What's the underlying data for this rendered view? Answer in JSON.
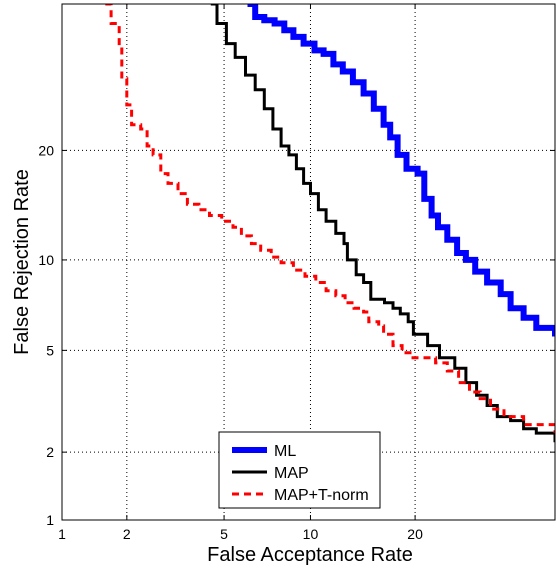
{
  "chart_data": {
    "type": "line",
    "title": "",
    "xlabel": "False Acceptance Rate",
    "ylabel": "False Rejection Rate",
    "x_scale": "probit",
    "y_scale": "probit",
    "xlim": [
      1,
      40
    ],
    "ylim": [
      1,
      40
    ],
    "xticks": [
      1,
      2,
      5,
      10,
      20
    ],
    "yticks": [
      1,
      2,
      5,
      10,
      20
    ],
    "grid": true,
    "legend_position": "bottom-center",
    "series": [
      {
        "name": "ML",
        "color": "#0000ff",
        "style": "solid-thick",
        "points": [
          [
            6.1,
            40
          ],
          [
            6.5,
            38
          ],
          [
            7.0,
            37.5
          ],
          [
            7.6,
            37
          ],
          [
            8.2,
            36
          ],
          [
            8.8,
            35
          ],
          [
            9.5,
            34
          ],
          [
            10.3,
            33
          ],
          [
            11.0,
            32.5
          ],
          [
            11.8,
            31
          ],
          [
            12.6,
            30
          ],
          [
            13.5,
            28.5
          ],
          [
            14.5,
            27
          ],
          [
            15.5,
            25
          ],
          [
            16.5,
            23
          ],
          [
            17.2,
            21.5
          ],
          [
            18.0,
            19.5
          ],
          [
            19.0,
            18
          ],
          [
            20.3,
            17.5
          ],
          [
            21.1,
            15
          ],
          [
            22.0,
            13.5
          ],
          [
            22.8,
            12.5
          ],
          [
            24.0,
            11.5
          ],
          [
            25.3,
            10.5
          ],
          [
            26.5,
            10
          ],
          [
            27.8,
            9.2
          ],
          [
            29.5,
            8.5
          ],
          [
            31.5,
            7.8
          ],
          [
            33.0,
            7.0
          ],
          [
            35.0,
            6.5
          ],
          [
            37.0,
            6.0
          ],
          [
            40.0,
            5.6
          ]
        ]
      },
      {
        "name": "MAP",
        "color": "#000000",
        "style": "solid",
        "points": [
          [
            4.45,
            40
          ],
          [
            4.7,
            37
          ],
          [
            5.1,
            34
          ],
          [
            5.5,
            32
          ],
          [
            6.0,
            29.5
          ],
          [
            6.5,
            27.5
          ],
          [
            7.0,
            25
          ],
          [
            7.5,
            22.5
          ],
          [
            8.0,
            20.5
          ],
          [
            8.5,
            19.5
          ],
          [
            9.0,
            18
          ],
          [
            9.5,
            16.5
          ],
          [
            10.0,
            15.5
          ],
          [
            10.6,
            14
          ],
          [
            11.2,
            13
          ],
          [
            12.0,
            12
          ],
          [
            12.7,
            11.2
          ],
          [
            13.0,
            10
          ],
          [
            13.8,
            9
          ],
          [
            14.5,
            8.5
          ],
          [
            15.2,
            7.5
          ],
          [
            16.6,
            7.3
          ],
          [
            17.5,
            7.0
          ],
          [
            18.3,
            6.7
          ],
          [
            19.2,
            6.3
          ],
          [
            19.8,
            5.7
          ],
          [
            20.8,
            5.7
          ],
          [
            21.5,
            5.2
          ],
          [
            23.0,
            4.7
          ],
          [
            25.0,
            4.3
          ],
          [
            26.5,
            3.8
          ],
          [
            28.0,
            3.4
          ],
          [
            29.5,
            3.1
          ],
          [
            31.0,
            2.8
          ],
          [
            33.0,
            2.7
          ],
          [
            35.0,
            2.5
          ],
          [
            37.0,
            2.4
          ],
          [
            40.0,
            2.2
          ]
        ]
      },
      {
        "name": "MAP+T-norm",
        "color": "#ff0000",
        "style": "dashed",
        "points": [
          [
            1.6,
            40
          ],
          [
            1.7,
            37
          ],
          [
            1.85,
            33.5
          ],
          [
            1.9,
            29
          ],
          [
            2.0,
            25.5
          ],
          [
            2.1,
            23
          ],
          [
            2.3,
            22.5
          ],
          [
            2.45,
            20.5
          ],
          [
            2.6,
            19.5
          ],
          [
            2.8,
            17.5
          ],
          [
            3.0,
            16.5
          ],
          [
            3.3,
            15.5
          ],
          [
            3.6,
            14.5
          ],
          [
            4.0,
            14
          ],
          [
            4.4,
            13.5
          ],
          [
            4.9,
            13
          ],
          [
            5.4,
            12.5
          ],
          [
            5.8,
            11.8
          ],
          [
            6.3,
            11.2
          ],
          [
            6.8,
            10.7
          ],
          [
            7.4,
            10.2
          ],
          [
            8.0,
            9.8
          ],
          [
            8.8,
            9.3
          ],
          [
            9.6,
            8.9
          ],
          [
            10.4,
            8.5
          ],
          [
            11.2,
            8.0
          ],
          [
            12.0,
            7.7
          ],
          [
            12.8,
            7.3
          ],
          [
            13.6,
            7.0
          ],
          [
            14.5,
            6.8
          ],
          [
            15.0,
            6.3
          ],
          [
            16.0,
            6.1
          ],
          [
            16.5,
            5.7
          ],
          [
            17.5,
            5.2
          ],
          [
            18.5,
            4.9
          ],
          [
            19.4,
            4.7
          ],
          [
            21.0,
            4.7
          ],
          [
            22.5,
            4.5
          ],
          [
            24.0,
            4.2
          ],
          [
            25.5,
            3.8
          ],
          [
            27.0,
            3.5
          ],
          [
            28.5,
            3.3
          ],
          [
            30.0,
            3.0
          ],
          [
            32.0,
            2.8
          ],
          [
            35.0,
            2.6
          ],
          [
            40.0,
            2.4
          ]
        ]
      }
    ]
  }
}
